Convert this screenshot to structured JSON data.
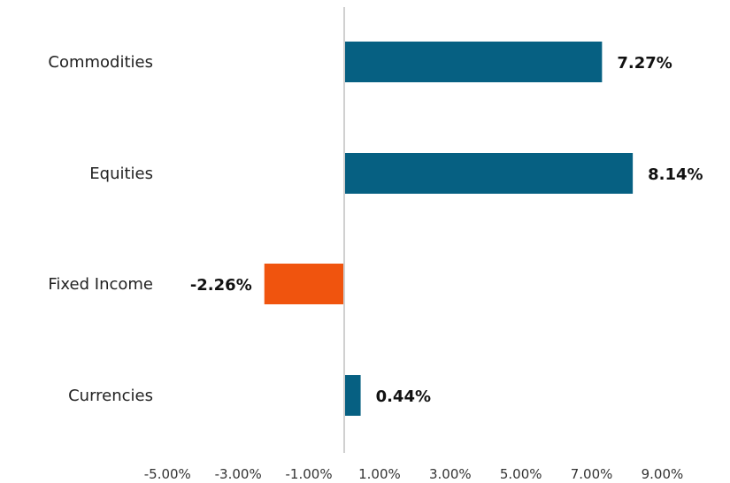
{
  "chart_data": {
    "type": "bar",
    "orientation": "horizontal",
    "categories": [
      "Commodities",
      "Equities",
      "Fixed Income",
      "Currencies"
    ],
    "values": [
      7.27,
      8.14,
      -2.26,
      0.44
    ],
    "value_labels": [
      "7.27%",
      "8.14%",
      "-2.26%",
      "0.44%"
    ],
    "x_ticks": [
      "-5.00%",
      "-3.00%",
      "-1.00%",
      "1.00%",
      "3.00%",
      "5.00%",
      "7.00%",
      "9.00%"
    ],
    "xlim": [
      -6,
      10
    ],
    "title": "",
    "xlabel": "",
    "ylabel": "",
    "grid": false,
    "legend": "none",
    "colors": {
      "positive": "#066082",
      "negative": "#f0540e",
      "zero_line": "#d0d0d0"
    }
  }
}
